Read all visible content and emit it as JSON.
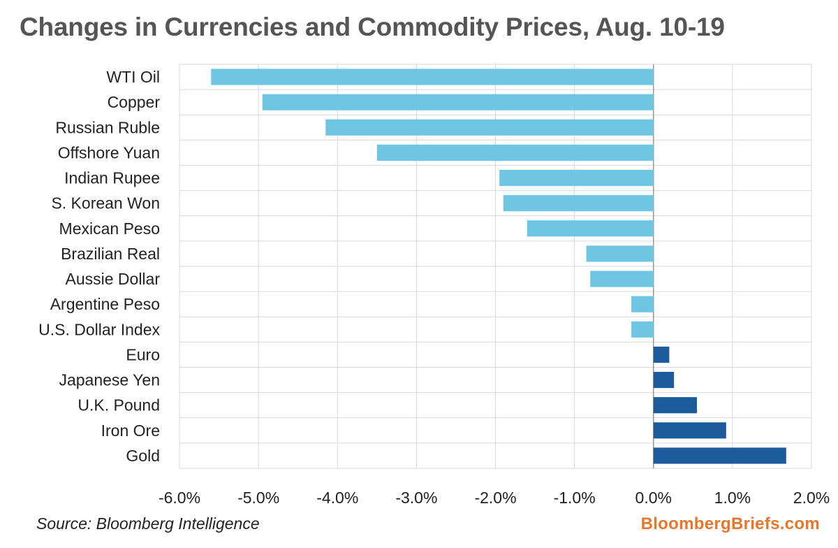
{
  "chart_data": {
    "type": "bar",
    "orientation": "horizontal",
    "title": "Changes in Currencies and Commodity Prices, Aug. 10-19",
    "categories": [
      "WTI Oil",
      "Copper",
      "Russian Ruble",
      "Offshore Yuan",
      "Indian Rupee",
      "S. Korean Won",
      "Mexican Peso",
      "Brazilian Real",
      "Aussie Dollar",
      "Argentine Peso",
      "U.S. Dollar Index",
      "Euro",
      "Japanese Yen",
      "U.K. Pound",
      "Iron Ore",
      "Gold"
    ],
    "values": [
      -5.6,
      -4.95,
      -4.15,
      -3.5,
      -1.95,
      -1.9,
      -1.6,
      -0.85,
      -0.8,
      -0.28,
      -0.28,
      0.2,
      0.26,
      0.55,
      0.92,
      1.68
    ],
    "xlim": [
      -6.0,
      2.0
    ],
    "xticks": [
      -6.0,
      -5.0,
      -4.0,
      -3.0,
      -2.0,
      -1.0,
      0.0,
      1.0,
      2.0
    ],
    "xtick_labels": [
      "-6.0%",
      "-5.0%",
      "-4.0%",
      "-3.0%",
      "-2.0%",
      "-1.0%",
      "0.0%",
      "1.0%",
      "2.0%"
    ],
    "xlabel": "",
    "ylabel": "",
    "grid": true,
    "colors": {
      "negative": "#6ec6e2",
      "positive": "#1c5c9c",
      "grid": "#d9d9d9",
      "zero_line": "#999999"
    }
  },
  "footer": {
    "source": "Source: Bloomberg Intelligence",
    "brand": "BloombergBriefs.com"
  }
}
